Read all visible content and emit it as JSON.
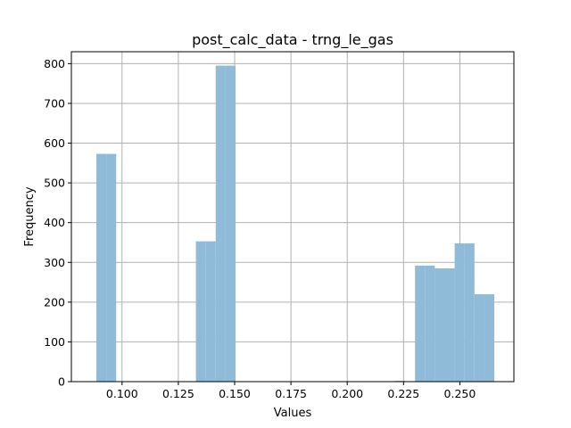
{
  "chart_data": {
    "type": "bar",
    "title": "post_calc_data - trng_le_gas",
    "xlabel": "Values",
    "ylabel": "Frequency",
    "xlim": [
      0.0775,
      0.274
    ],
    "ylim": [
      0,
      830
    ],
    "xticks": [
      0.1,
      0.125,
      0.15,
      0.175,
      0.2,
      0.225,
      0.25
    ],
    "xtick_labels": [
      "0.100",
      "0.125",
      "0.150",
      "0.175",
      "0.200",
      "0.225",
      "0.250"
    ],
    "yticks": [
      0,
      100,
      200,
      300,
      400,
      500,
      600,
      700,
      800
    ],
    "ytick_labels": [
      "0",
      "100",
      "200",
      "300",
      "400",
      "500",
      "600",
      "700",
      "800"
    ],
    "grid": true,
    "bar_color": "#8fbbd9",
    "bins": [
      {
        "x0": 0.0886,
        "x1": 0.093,
        "count": 573
      },
      {
        "x0": 0.093,
        "x1": 0.0974,
        "count": 573
      },
      {
        "x0": 0.1328,
        "x1": 0.1372,
        "count": 353
      },
      {
        "x0": 0.1372,
        "x1": 0.1416,
        "count": 353
      },
      {
        "x0": 0.1416,
        "x1": 0.146,
        "count": 795
      },
      {
        "x0": 0.146,
        "x1": 0.1504,
        "count": 795
      },
      {
        "x0": 0.2213,
        "x1": 0.2257,
        "count": 2
      },
      {
        "x0": 0.2301,
        "x1": 0.2345,
        "count": 292
      },
      {
        "x0": 0.2345,
        "x1": 0.2389,
        "count": 292
      },
      {
        "x0": 0.2389,
        "x1": 0.2433,
        "count": 285
      },
      {
        "x0": 0.2433,
        "x1": 0.2477,
        "count": 285
      },
      {
        "x0": 0.2477,
        "x1": 0.2521,
        "count": 348
      },
      {
        "x0": 0.2521,
        "x1": 0.2565,
        "count": 348
      },
      {
        "x0": 0.2565,
        "x1": 0.2609,
        "count": 220
      },
      {
        "x0": 0.2609,
        "x1": 0.2653,
        "count": 220
      }
    ]
  }
}
